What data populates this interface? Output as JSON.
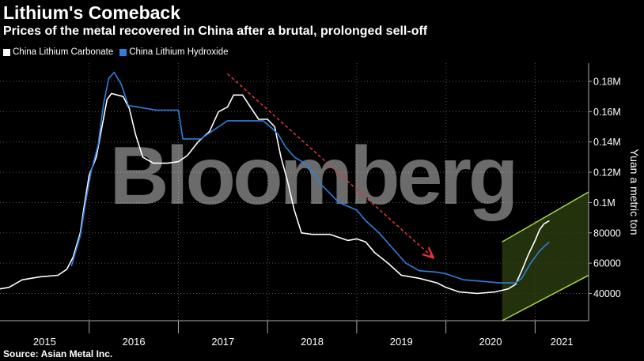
{
  "title": "Lithium's Comeback",
  "subtitle": "Prices of the metal recovered in China after a brutal, prolonged sell-off",
  "source": "Source: Asian Metal Inc.",
  "watermark": "Bloomberg",
  "colors": {
    "background": "#000000",
    "carbonate": "#ffffff",
    "hydroxide": "#2f7fe0",
    "trend_arrow": "#e8343a",
    "channel": "#a6d64a",
    "channel_fill": "#2c3d0f",
    "grid": "#555555"
  },
  "chart_data": {
    "type": "line",
    "ylabel": "Yuan a metric ton",
    "ylim": [
      22000,
      192000
    ],
    "y_ticks": [
      {
        "value": 40000,
        "label": "40000"
      },
      {
        "value": 60000,
        "label": "60000"
      },
      {
        "value": 80000,
        "label": "80000"
      },
      {
        "value": 100000,
        "label": "0.1M"
      },
      {
        "value": 120000,
        "label": "0.12M"
      },
      {
        "value": 140000,
        "label": "0.14M"
      },
      {
        "value": 160000,
        "label": "0.16M"
      },
      {
        "value": 180000,
        "label": "0.18M"
      }
    ],
    "xlim": [
      2015.0,
      2021.6
    ],
    "year_ticks": [
      2016,
      2017,
      2018,
      2019,
      2020,
      2021
    ],
    "year_labels": [
      {
        "label": "2015",
        "x": 2015.5
      },
      {
        "label": "2016",
        "x": 2016.5
      },
      {
        "label": "2017",
        "x": 2017.5
      },
      {
        "label": "2018",
        "x": 2018.5
      },
      {
        "label": "2019",
        "x": 2019.5
      },
      {
        "label": "2020",
        "x": 2020.5
      },
      {
        "label": "2021",
        "x": 2021.3
      }
    ],
    "grid": true,
    "legend_position": "top-left",
    "series": [
      {
        "name": "China Lithium Carbonate",
        "color": "#ffffff",
        "points": [
          [
            2015.0,
            43000
          ],
          [
            2015.1,
            44000
          ],
          [
            2015.25,
            49000
          ],
          [
            2015.45,
            51000
          ],
          [
            2015.65,
            52000
          ],
          [
            2015.75,
            56000
          ],
          [
            2015.82,
            64000
          ],
          [
            2015.9,
            80000
          ],
          [
            2015.95,
            100000
          ],
          [
            2016.0,
            118000
          ],
          [
            2016.08,
            130000
          ],
          [
            2016.15,
            152000
          ],
          [
            2016.2,
            168000
          ],
          [
            2016.25,
            172000
          ],
          [
            2016.38,
            170000
          ],
          [
            2016.45,
            162000
          ],
          [
            2016.52,
            145000
          ],
          [
            2016.6,
            130000
          ],
          [
            2016.72,
            126000
          ],
          [
            2016.88,
            126000
          ],
          [
            2017.0,
            127000
          ],
          [
            2017.1,
            131000
          ],
          [
            2017.22,
            140000
          ],
          [
            2017.35,
            147000
          ],
          [
            2017.45,
            160000
          ],
          [
            2017.55,
            163000
          ],
          [
            2017.62,
            171000
          ],
          [
            2017.72,
            171000
          ],
          [
            2017.82,
            162000
          ],
          [
            2017.9,
            155000
          ],
          [
            2018.0,
            155000
          ],
          [
            2018.08,
            150000
          ],
          [
            2018.15,
            130000
          ],
          [
            2018.22,
            115000
          ],
          [
            2018.3,
            95000
          ],
          [
            2018.38,
            80000
          ],
          [
            2018.5,
            79000
          ],
          [
            2018.7,
            79000
          ],
          [
            2018.9,
            75000
          ],
          [
            2019.0,
            76000
          ],
          [
            2019.1,
            74000
          ],
          [
            2019.2,
            67000
          ],
          [
            2019.35,
            60000
          ],
          [
            2019.5,
            52000
          ],
          [
            2019.7,
            50000
          ],
          [
            2019.9,
            47000
          ],
          [
            2020.0,
            44000
          ],
          [
            2020.15,
            41000
          ],
          [
            2020.35,
            40000
          ],
          [
            2020.55,
            41000
          ],
          [
            2020.7,
            43000
          ],
          [
            2020.78,
            46000
          ],
          [
            2020.85,
            55000
          ],
          [
            2020.92,
            65000
          ],
          [
            2021.0,
            75000
          ],
          [
            2021.05,
            82000
          ],
          [
            2021.1,
            86000
          ],
          [
            2021.16,
            88000
          ]
        ]
      },
      {
        "name": "China Lithium Hydroxide",
        "color": "#2f7fe0",
        "points": [
          [
            2015.8,
            58000
          ],
          [
            2015.9,
            78000
          ],
          [
            2015.96,
            100000
          ],
          [
            2016.02,
            120000
          ],
          [
            2016.1,
            138000
          ],
          [
            2016.16,
            165000
          ],
          [
            2016.22,
            182000
          ],
          [
            2016.28,
            186000
          ],
          [
            2016.36,
            178000
          ],
          [
            2016.44,
            164000
          ],
          [
            2016.55,
            163000
          ],
          [
            2016.75,
            161000
          ],
          [
            2016.92,
            161000
          ],
          [
            2017.0,
            161000
          ],
          [
            2017.05,
            142000
          ],
          [
            2017.25,
            142000
          ],
          [
            2017.35,
            146000
          ],
          [
            2017.45,
            150000
          ],
          [
            2017.55,
            154000
          ],
          [
            2017.8,
            154000
          ],
          [
            2017.95,
            154000
          ],
          [
            2018.05,
            149000
          ],
          [
            2018.12,
            145000
          ],
          [
            2018.2,
            137000
          ],
          [
            2018.3,
            130000
          ],
          [
            2018.45,
            125000
          ],
          [
            2018.6,
            112000
          ],
          [
            2018.8,
            100000
          ],
          [
            2019.0,
            95000
          ],
          [
            2019.1,
            88000
          ],
          [
            2019.25,
            80000
          ],
          [
            2019.4,
            70000
          ],
          [
            2019.55,
            60000
          ],
          [
            2019.7,
            55000
          ],
          [
            2019.9,
            54000
          ],
          [
            2020.0,
            53000
          ],
          [
            2020.2,
            49000
          ],
          [
            2020.4,
            48000
          ],
          [
            2020.6,
            47000
          ],
          [
            2020.78,
            47000
          ],
          [
            2020.85,
            50000
          ],
          [
            2020.95,
            60000
          ],
          [
            2021.05,
            68000
          ],
          [
            2021.12,
            72000
          ],
          [
            2021.16,
            74000
          ]
        ]
      }
    ],
    "annotations": [
      {
        "type": "trend-arrow",
        "from": [
          2017.55,
          185000
        ],
        "to": [
          2019.85,
          64000
        ]
      },
      {
        "type": "rising-channel",
        "lower": [
          [
            2020.63,
            22000
          ],
          [
            2021.6,
            52000
          ]
        ],
        "upper": [
          [
            2020.63,
            74000
          ],
          [
            2021.6,
            107000
          ]
        ]
      }
    ]
  }
}
